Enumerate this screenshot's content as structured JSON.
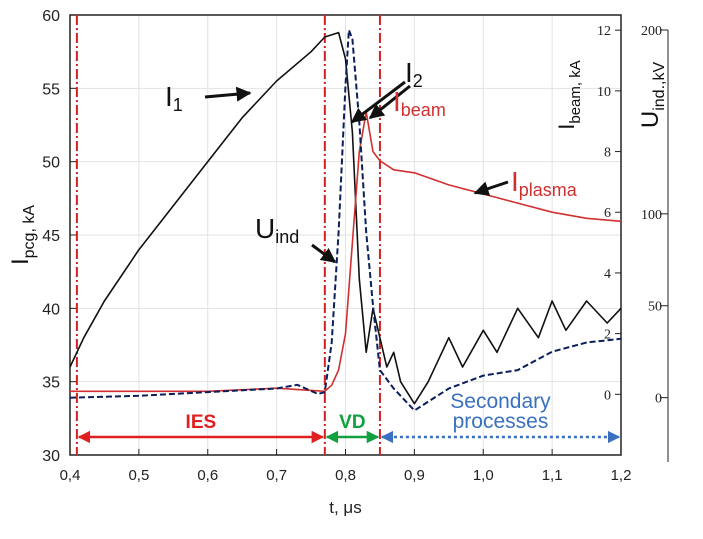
{
  "chart_data": {
    "type": "line",
    "xlabel": "t, μs",
    "ylabel": {
      "main": "I",
      "sub": "pcg, kA"
    },
    "y2label": {
      "main": "I",
      "sub": "beam, kA"
    },
    "y3label": {
      "main": "U",
      "sub": "ind.,kV"
    },
    "xlim": [
      0.4,
      1.2
    ],
    "xticks": [
      {
        "value": 0.4,
        "label": "0,4"
      },
      {
        "value": 0.5,
        "label": "0,5"
      },
      {
        "value": 0.6,
        "label": "0,6"
      },
      {
        "value": 0.7,
        "label": "0,7"
      },
      {
        "value": 0.8,
        "label": "0,8"
      },
      {
        "value": 0.9,
        "label": "0,9"
      },
      {
        "value": 1.0,
        "label": "1,0"
      },
      {
        "value": 1.1,
        "label": "1,1"
      },
      {
        "value": 1.2,
        "label": "1,2"
      }
    ],
    "ylim": [
      30,
      60
    ],
    "yticks": [
      30,
      35,
      40,
      45,
      50,
      55,
      60
    ],
    "y2lim": [
      -2,
      12.5
    ],
    "y2ticks": [
      0,
      2,
      4,
      6,
      8,
      10,
      12
    ],
    "y3lim": [
      -35,
      200
    ],
    "y3ticks": [
      0,
      50,
      100,
      200
    ],
    "grid": true,
    "series": [
      {
        "axis": "y",
        "color": "#111111",
        "dash": false,
        "x": [
          0.4,
          0.42,
          0.45,
          0.5,
          0.55,
          0.6,
          0.65,
          0.7,
          0.75,
          0.77,
          0.79,
          0.8,
          0.81,
          0.82,
          0.83,
          0.84,
          0.85,
          0.86,
          0.87,
          0.88,
          0.9,
          0.92,
          0.95,
          0.97,
          1.0,
          1.02,
          1.05,
          1.08,
          1.1,
          1.12,
          1.15,
          1.18,
          1.2
        ],
        "values": [
          36,
          38,
          40.5,
          44,
          47,
          50,
          53,
          55.5,
          57.5,
          58.5,
          58.8,
          57,
          52,
          42,
          37,
          40,
          38,
          36,
          37,
          35,
          33.5,
          35,
          38,
          36,
          38.5,
          37,
          40,
          38,
          40.5,
          38.5,
          40.5,
          39,
          40
        ]
      },
      {
        "axis": "y2",
        "color": "#d03030",
        "dash": false,
        "x": [
          0.4,
          0.5,
          0.6,
          0.7,
          0.77,
          0.78,
          0.79,
          0.8,
          0.81,
          0.82,
          0.83,
          0.84,
          0.85,
          0.87,
          0.9,
          0.95,
          1.0,
          1.05,
          1.1,
          1.15,
          1.2
        ],
        "values": [
          0.1,
          0.1,
          0.1,
          0.2,
          0.1,
          0.3,
          0.8,
          2,
          5,
          8,
          9.3,
          8,
          7.7,
          7.4,
          7.3,
          6.9,
          6.6,
          6.3,
          6.0,
          5.8,
          5.7
        ]
      },
      {
        "axis": "y3",
        "color": "#0a1f5c",
        "dash": true,
        "x": [
          0.4,
          0.5,
          0.6,
          0.7,
          0.73,
          0.76,
          0.77,
          0.78,
          0.79,
          0.8,
          0.805,
          0.81,
          0.82,
          0.83,
          0.84,
          0.85,
          0.87,
          0.9,
          0.95,
          1.0,
          1.05,
          1.1,
          1.15,
          1.2
        ],
        "values": [
          0,
          1,
          3,
          5,
          7,
          2,
          3,
          30,
          90,
          170,
          200,
          195,
          150,
          90,
          50,
          15,
          5,
          -7,
          5,
          12,
          15,
          25,
          30,
          32
        ]
      }
    ],
    "vlines": [
      0.41,
      0.77,
      0.85
    ],
    "vline_color": "#d42020",
    "regions": [
      {
        "lines": [
          "IES"
        ],
        "start": 0.41,
        "end": 0.77,
        "color": "#e02020"
      },
      {
        "lines": [
          "VD"
        ],
        "start": 0.77,
        "end": 0.85,
        "color": "#10a040"
      },
      {
        "lines": [
          "Secondary",
          "processes"
        ],
        "start": 0.85,
        "end": 1.2,
        "color": "#3a70c0"
      }
    ],
    "annotations": [
      {
        "text": "I",
        "sub": "1",
        "color": "#111111"
      },
      {
        "text": "I",
        "sub": "2",
        "color": "#111111"
      },
      {
        "text": "I",
        "sub": "beam",
        "color": "#d03030"
      },
      {
        "text": "I",
        "sub": "plasma",
        "color": "#d03030"
      },
      {
        "text": "U",
        "sub": "ind",
        "color": "#111111"
      }
    ]
  }
}
